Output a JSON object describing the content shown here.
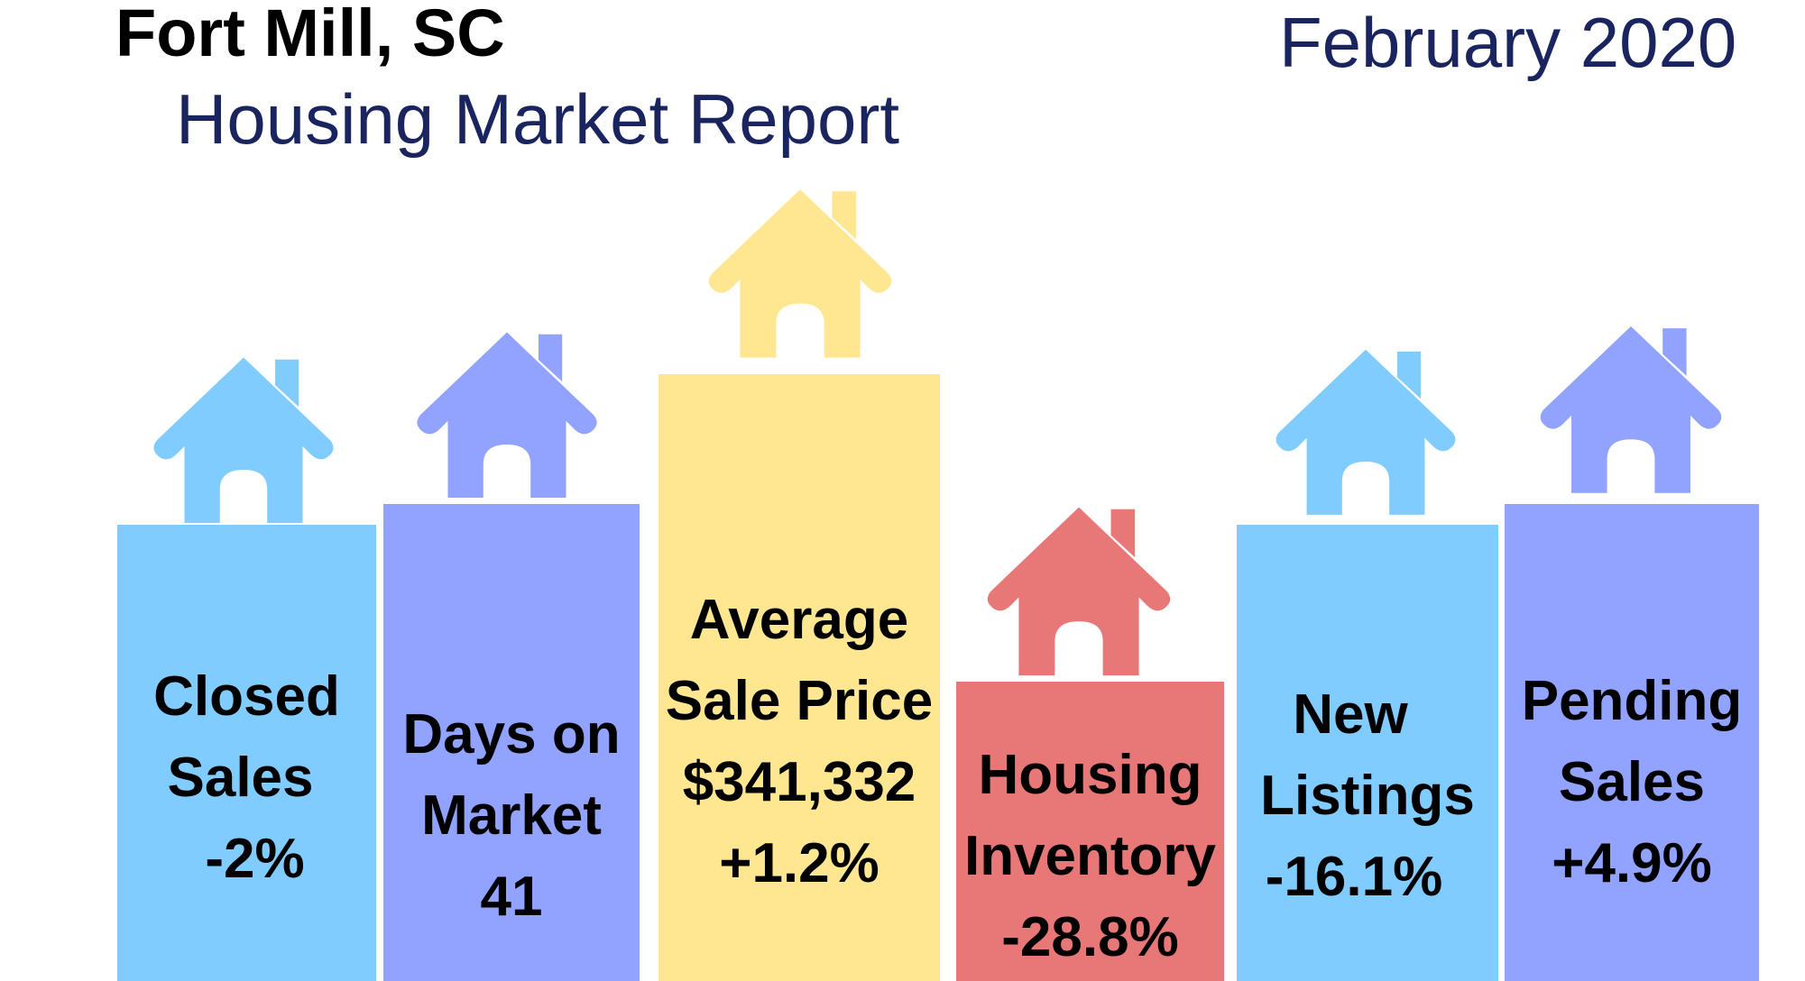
{
  "header": {
    "city": "Fort Mill, SC",
    "subtitle": "Housing Market Report",
    "period": "February 2020"
  },
  "colors": {
    "blue": "#80ccff",
    "purple": "#91a2ff",
    "yellow": "#ffe690",
    "red": "#e87878",
    "title": "#1a2560"
  },
  "stats": [
    {
      "line1": "Closed",
      "line2": "Sales",
      "value": "-2%",
      "color": "blue"
    },
    {
      "line1": "Days on",
      "line2": "Market",
      "value": "41",
      "color": "purple"
    },
    {
      "line1": "Average",
      "line2": "Sale Price",
      "value": "$341,332",
      "change": "+1.2%",
      "color": "yellow"
    },
    {
      "line1": "Housing",
      "line2": "Inventory",
      "value": "-28.8%",
      "color": "red"
    },
    {
      "line1": "New",
      "line2": "Listings",
      "value": "-16.1%",
      "color": "blue"
    },
    {
      "line1": "Pending",
      "line2": "Sales",
      "value": "+4.9%",
      "color": "purple"
    }
  ]
}
